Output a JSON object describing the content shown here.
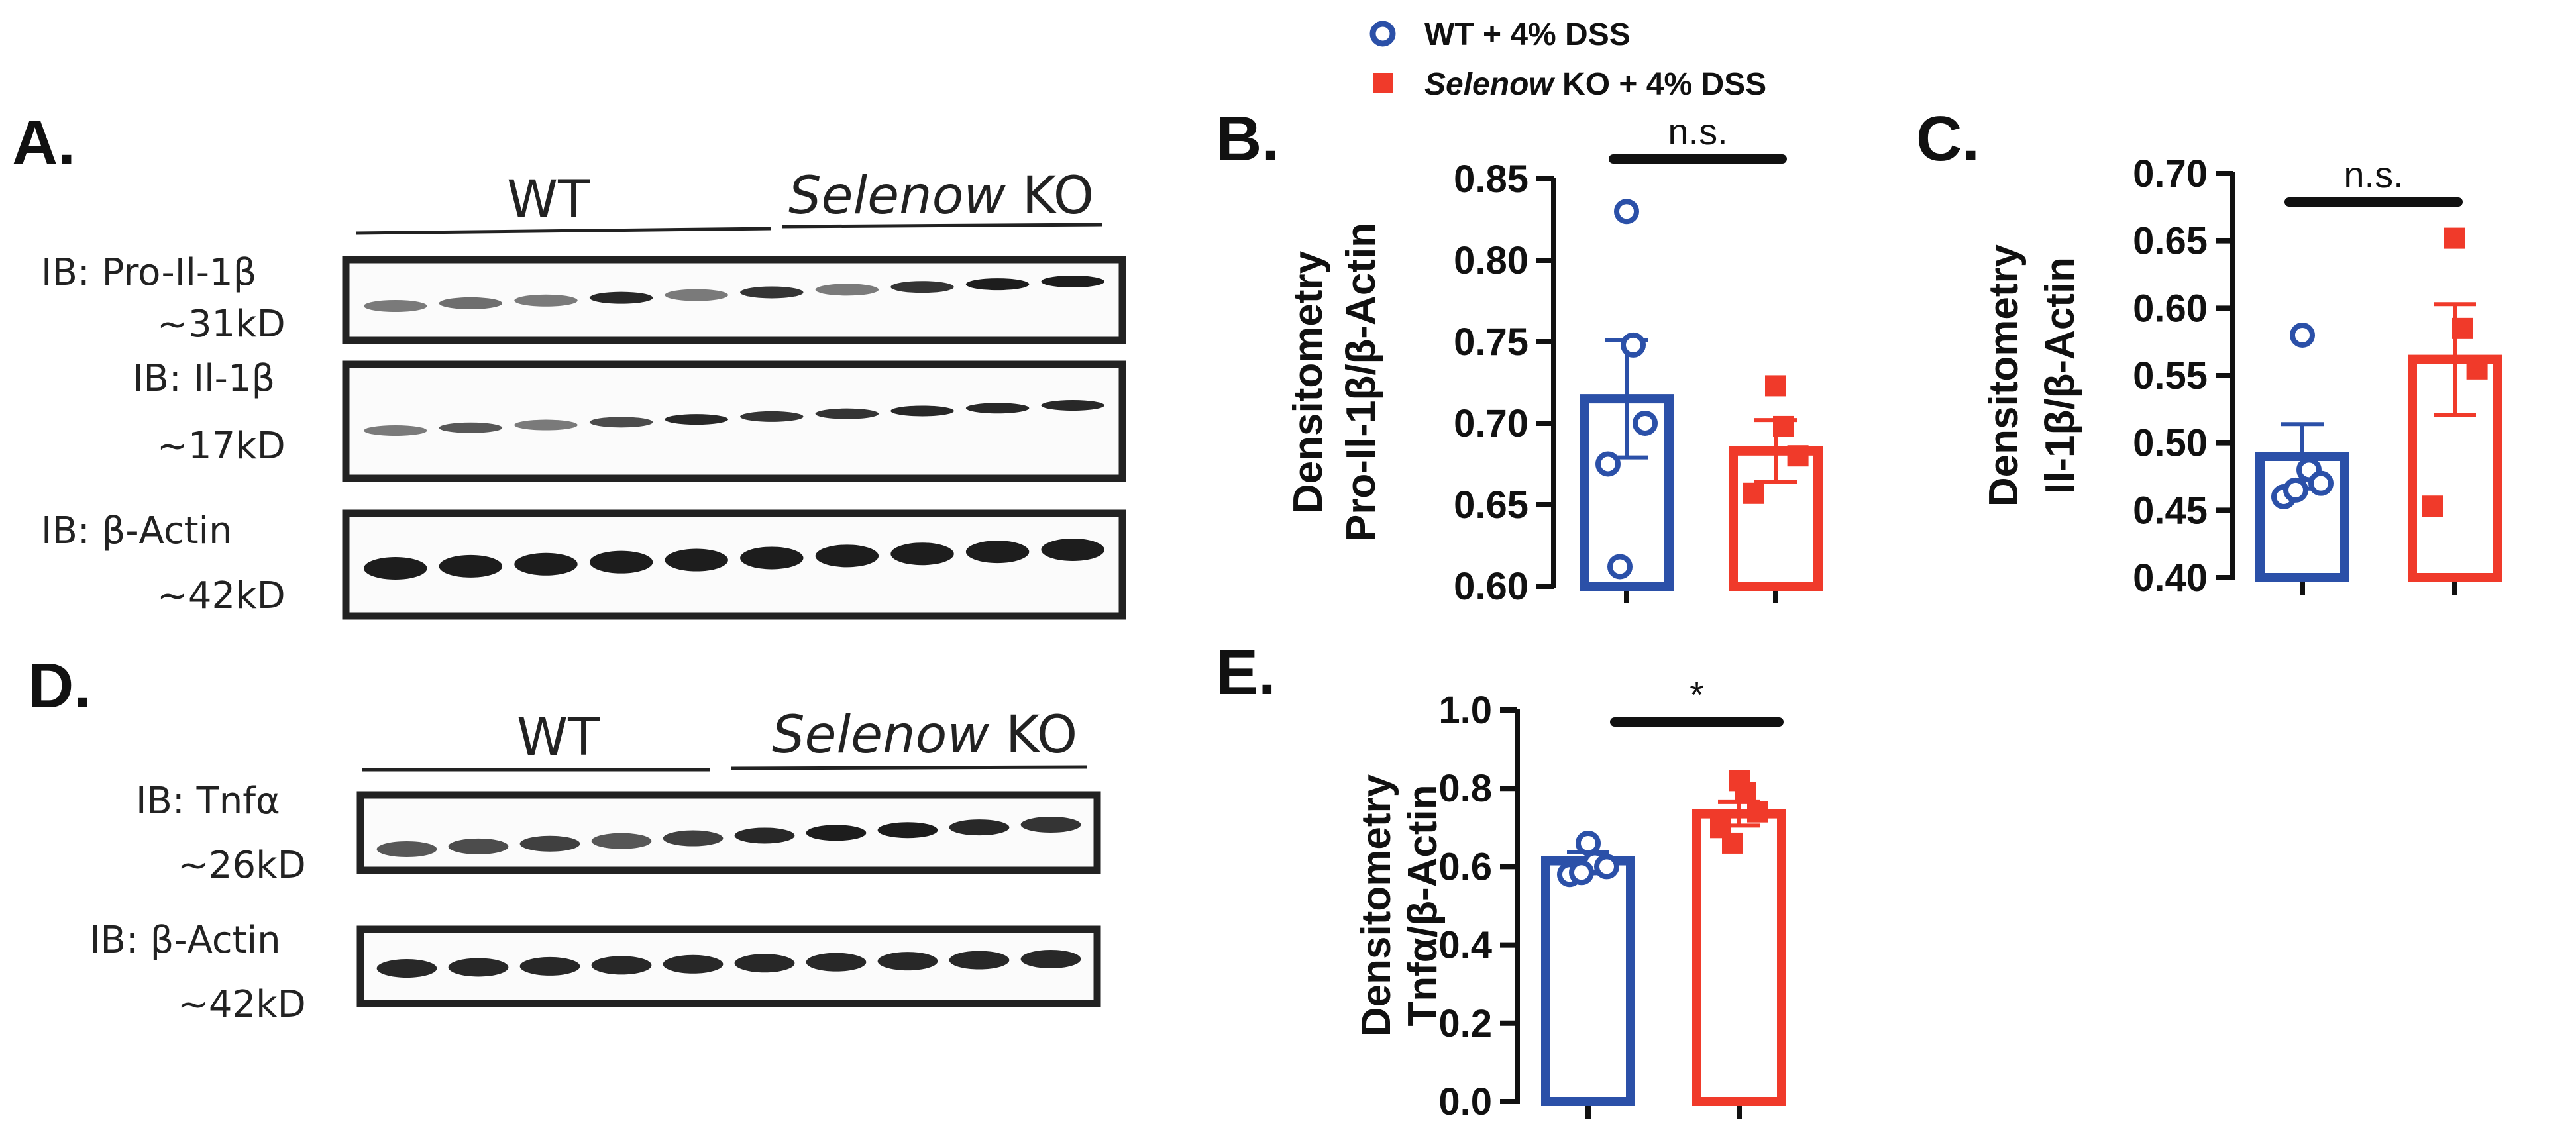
{
  "legend": {
    "items": [
      {
        "label": "WT + 4% DSS",
        "prefix_italic": "",
        "color": "#2b50a8",
        "marker": "circle"
      },
      {
        "label": " KO + 4% DSS",
        "prefix_italic": "Selenow",
        "color": "#f03a2a",
        "marker": "square"
      }
    ]
  },
  "blots": {
    "A": {
      "letter": "A.",
      "wt_label": "WT",
      "ko_italic": "Selenow",
      "ko_rest": " KO",
      "rows": [
        {
          "ib": "IB: Pro-Il-1β",
          "kd": "~31kD"
        },
        {
          "ib": "IB: Il-1β",
          "kd": "~17kD"
        },
        {
          "ib": "IB: β-Actin",
          "kd": "~42kD"
        }
      ]
    },
    "D": {
      "letter": "D.",
      "wt_label": "WT",
      "ko_italic": "Selenow",
      "ko_rest": " KO",
      "rows": [
        {
          "ib": "IB: Tnfα",
          "kd": "~26kD"
        },
        {
          "ib": "IB: β-Actin",
          "kd": "~42kD"
        }
      ]
    }
  },
  "chart_data": [
    {
      "panel": "B",
      "letter": "B.",
      "type": "bar",
      "ylabel_line1": "Densitometry",
      "ylabel_line2": "Pro-Il-1β/β-Actin",
      "ylim": [
        0.6,
        0.85
      ],
      "yticks": [
        "0.60",
        "0.65",
        "0.70",
        "0.75",
        "0.80",
        "0.85"
      ],
      "significance": "n.s.",
      "series": [
        {
          "name": "WT + 4% DSS",
          "color": "#2b50a8",
          "marker": "circle",
          "mean": 0.715,
          "sem": 0.036,
          "points": [
            0.83,
            0.748,
            0.7,
            0.675,
            0.612
          ]
        },
        {
          "name": "Selenow KO + 4% DSS",
          "color": "#f03a2a",
          "marker": "square",
          "mean": 0.683,
          "sem": 0.019,
          "points": [
            0.723,
            0.698,
            0.68,
            0.657
          ]
        }
      ]
    },
    {
      "panel": "C",
      "letter": "C.",
      "type": "bar",
      "ylabel_line1": "Densitometry",
      "ylabel_line2": "Il-1β/β-Actin",
      "ylim": [
        0.4,
        0.7
      ],
      "yticks": [
        "0.40",
        "0.45",
        "0.50",
        "0.55",
        "0.60",
        "0.65",
        "0.70"
      ],
      "significance": "n.s.",
      "series": [
        {
          "name": "WT + 4% DSS",
          "color": "#2b50a8",
          "marker": "circle",
          "mean": 0.49,
          "sem": 0.024,
          "points": [
            0.58,
            0.48,
            0.47,
            0.46,
            0.465
          ]
        },
        {
          "name": "Selenow KO + 4% DSS",
          "color": "#f03a2a",
          "marker": "square",
          "mean": 0.562,
          "sem": 0.041,
          "points": [
            0.652,
            0.585,
            0.555,
            0.453
          ]
        }
      ]
    },
    {
      "panel": "E",
      "letter": "E.",
      "type": "bar",
      "ylabel_line1": "Densitometry",
      "ylabel_line2": "Tnfα/β-Actin",
      "ylim": [
        0.0,
        1.0
      ],
      "yticks": [
        "0.0",
        "0.2",
        "0.4",
        "0.6",
        "0.8",
        "1.0"
      ],
      "significance": "*",
      "series": [
        {
          "name": "WT + 4% DSS",
          "color": "#2b50a8",
          "marker": "circle",
          "mean": 0.615,
          "sem": 0.022,
          "points": [
            0.66,
            0.61,
            0.6,
            0.58,
            0.585
          ]
        },
        {
          "name": "Selenow KO + 4% DSS",
          "color": "#f03a2a",
          "marker": "square",
          "mean": 0.735,
          "sem": 0.03,
          "points": [
            0.82,
            0.79,
            0.74,
            0.7,
            0.66
          ]
        }
      ]
    }
  ]
}
